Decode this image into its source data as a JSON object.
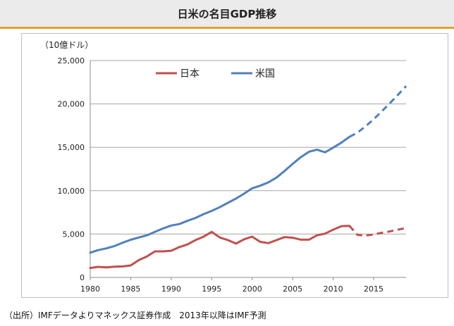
{
  "title": "日米の名目GDP推移",
  "source_note": "（出所）IMFデータよりマネックス証券作成　2013年以降はIMF予測",
  "chart_data": {
    "type": "line",
    "title": "日米の名目GDP推移",
    "ylabel": "（10億ドル）",
    "xlabel": "",
    "xlim": [
      1980,
      2019
    ],
    "ylim": [
      0,
      25000
    ],
    "x_ticks": [
      1980,
      1985,
      1990,
      1995,
      2000,
      2005,
      2010,
      2015
    ],
    "x_tick_labels": [
      "1980",
      "1985",
      "1990",
      "1995",
      "2000",
      "2005",
      "2010",
      "2015"
    ],
    "y_ticks": [
      0,
      5000,
      10000,
      15000,
      20000,
      25000
    ],
    "y_tick_labels": [
      "0",
      "5,000",
      "10,000",
      "15,000",
      "20,000",
      "25,000"
    ],
    "grid": "horizontal",
    "legend_position": "top-left",
    "x": [
      1980,
      1981,
      1982,
      1983,
      1984,
      1985,
      1986,
      1987,
      1988,
      1989,
      1990,
      1991,
      1992,
      1993,
      1994,
      1995,
      1996,
      1997,
      1998,
      1999,
      2000,
      2001,
      2002,
      2003,
      2004,
      2005,
      2006,
      2007,
      2008,
      2009,
      2010,
      2011,
      2012,
      2013,
      2014,
      2015,
      2016,
      2017,
      2018,
      2019
    ],
    "forecast_start_year": 2012,
    "series": [
      {
        "name": "日本",
        "color": "#c0504d",
        "values": [
          1090,
          1220,
          1150,
          1230,
          1270,
          1380,
          2000,
          2420,
          3000,
          3000,
          3080,
          3500,
          3800,
          4300,
          4700,
          5250,
          4600,
          4300,
          3900,
          4400,
          4700,
          4100,
          3950,
          4300,
          4650,
          4580,
          4350,
          4350,
          4850,
          5050,
          5500,
          5900,
          5950,
          4900,
          4820,
          4950,
          5150,
          5300,
          5500,
          5700
        ]
      },
      {
        "name": "米国",
        "color": "#4f81bd",
        "values": [
          2860,
          3150,
          3350,
          3620,
          4000,
          4340,
          4600,
          4850,
          5250,
          5650,
          5980,
          6150,
          6520,
          6860,
          7300,
          7670,
          8100,
          8600,
          9090,
          9660,
          10280,
          10580,
          10960,
          11510,
          12270,
          13090,
          13860,
          14480,
          14720,
          14420,
          14960,
          15530,
          16200,
          16700,
          17420,
          18240,
          19140,
          20080,
          21050,
          22050
        ]
      }
    ]
  }
}
